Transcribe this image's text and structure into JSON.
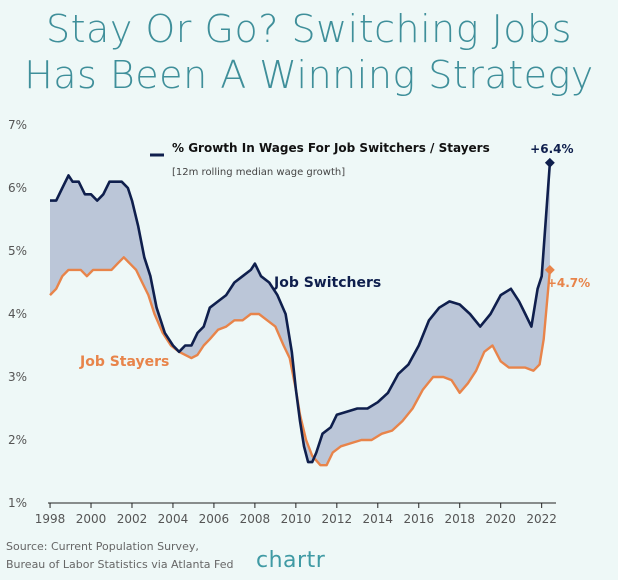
{
  "chart_data": {
    "type": "line",
    "title": [
      "Stay Or Go? Switching Jobs",
      "Has Been A Winning Strategy"
    ],
    "legend": {
      "title": "% Growth In Wages For Job Switchers / Stayers",
      "subtitle": "[12m rolling median wage growth]"
    },
    "xlim": [
      1997.9,
      2022.7
    ],
    "ylim": [
      1,
      7
    ],
    "x_ticks": [
      1998,
      2000,
      2002,
      2004,
      2006,
      2008,
      2010,
      2012,
      2014,
      2016,
      2018,
      2020,
      2022
    ],
    "y_ticks": [
      {
        "value": 1,
        "label": "1%"
      },
      {
        "value": 2,
        "label": "2%"
      },
      {
        "value": 3,
        "label": "3%"
      },
      {
        "value": 4,
        "label": "4%"
      },
      {
        "value": 5,
        "label": "5%"
      },
      {
        "value": 6,
        "label": "6%"
      },
      {
        "value": 7,
        "label": "7%"
      }
    ],
    "series": [
      {
        "name": "Job Switchers",
        "color": "#0f1f4d",
        "end_label": "+6.4%",
        "points": [
          [
            1998.0,
            5.8
          ],
          [
            1998.3,
            5.8
          ],
          [
            1998.6,
            6.0
          ],
          [
            1998.9,
            6.2
          ],
          [
            1999.1,
            6.1
          ],
          [
            1999.4,
            6.1
          ],
          [
            1999.7,
            5.9
          ],
          [
            2000.0,
            5.9
          ],
          [
            2000.3,
            5.8
          ],
          [
            2000.6,
            5.9
          ],
          [
            2000.9,
            6.1
          ],
          [
            2001.2,
            6.1
          ],
          [
            2001.5,
            6.1
          ],
          [
            2001.8,
            6.0
          ],
          [
            2002.0,
            5.8
          ],
          [
            2002.3,
            5.4
          ],
          [
            2002.6,
            4.9
          ],
          [
            2002.9,
            4.6
          ],
          [
            2003.2,
            4.1
          ],
          [
            2003.6,
            3.7
          ],
          [
            2004.0,
            3.5
          ],
          [
            2004.3,
            3.4
          ],
          [
            2004.6,
            3.5
          ],
          [
            2004.9,
            3.5
          ],
          [
            2005.2,
            3.7
          ],
          [
            2005.5,
            3.8
          ],
          [
            2005.8,
            4.1
          ],
          [
            2006.2,
            4.2
          ],
          [
            2006.6,
            4.3
          ],
          [
            2007.0,
            4.5
          ],
          [
            2007.4,
            4.6
          ],
          [
            2007.8,
            4.7
          ],
          [
            2008.0,
            4.8
          ],
          [
            2008.3,
            4.6
          ],
          [
            2008.7,
            4.5
          ],
          [
            2009.1,
            4.3
          ],
          [
            2009.5,
            4.0
          ],
          [
            2009.8,
            3.4
          ],
          [
            2010.0,
            2.8
          ],
          [
            2010.2,
            2.3
          ],
          [
            2010.4,
            1.9
          ],
          [
            2010.6,
            1.65
          ],
          [
            2010.8,
            1.65
          ],
          [
            2011.0,
            1.8
          ],
          [
            2011.3,
            2.1
          ],
          [
            2011.7,
            2.2
          ],
          [
            2012.0,
            2.4
          ],
          [
            2012.5,
            2.45
          ],
          [
            2013.0,
            2.5
          ],
          [
            2013.5,
            2.5
          ],
          [
            2014.0,
            2.6
          ],
          [
            2014.5,
            2.75
          ],
          [
            2015.0,
            3.05
          ],
          [
            2015.5,
            3.2
          ],
          [
            2016.0,
            3.5
          ],
          [
            2016.5,
            3.9
          ],
          [
            2017.0,
            4.1
          ],
          [
            2017.5,
            4.2
          ],
          [
            2018.0,
            4.15
          ],
          [
            2018.5,
            4.0
          ],
          [
            2019.0,
            3.8
          ],
          [
            2019.5,
            4.0
          ],
          [
            2020.0,
            4.3
          ],
          [
            2020.5,
            4.4
          ],
          [
            2020.9,
            4.2
          ],
          [
            2021.2,
            4.0
          ],
          [
            2021.5,
            3.8
          ],
          [
            2021.8,
            4.4
          ],
          [
            2022.0,
            4.6
          ],
          [
            2022.2,
            5.5
          ],
          [
            2022.4,
            6.4
          ]
        ]
      },
      {
        "name": "Job Stayers",
        "color": "#e8844a",
        "end_label": "+4.7%",
        "points": [
          [
            1998.0,
            4.3
          ],
          [
            1998.3,
            4.4
          ],
          [
            1998.6,
            4.6
          ],
          [
            1998.9,
            4.7
          ],
          [
            1999.2,
            4.7
          ],
          [
            1999.5,
            4.7
          ],
          [
            1999.8,
            4.6
          ],
          [
            2000.1,
            4.7
          ],
          [
            2000.4,
            4.7
          ],
          [
            2000.7,
            4.7
          ],
          [
            2001.0,
            4.7
          ],
          [
            2001.3,
            4.8
          ],
          [
            2001.6,
            4.9
          ],
          [
            2001.9,
            4.8
          ],
          [
            2002.2,
            4.7
          ],
          [
            2002.5,
            4.5
          ],
          [
            2002.8,
            4.3
          ],
          [
            2003.1,
            4.0
          ],
          [
            2003.5,
            3.7
          ],
          [
            2003.9,
            3.5
          ],
          [
            2004.3,
            3.4
          ],
          [
            2004.6,
            3.35
          ],
          [
            2004.9,
            3.3
          ],
          [
            2005.2,
            3.35
          ],
          [
            2005.5,
            3.5
          ],
          [
            2005.8,
            3.6
          ],
          [
            2006.2,
            3.75
          ],
          [
            2006.6,
            3.8
          ],
          [
            2007.0,
            3.9
          ],
          [
            2007.4,
            3.9
          ],
          [
            2007.8,
            4.0
          ],
          [
            2008.2,
            4.0
          ],
          [
            2008.6,
            3.9
          ],
          [
            2009.0,
            3.8
          ],
          [
            2009.4,
            3.5
          ],
          [
            2009.7,
            3.3
          ],
          [
            2010.0,
            2.8
          ],
          [
            2010.2,
            2.4
          ],
          [
            2010.5,
            2.0
          ],
          [
            2010.8,
            1.75
          ],
          [
            2011.2,
            1.6
          ],
          [
            2011.5,
            1.6
          ],
          [
            2011.8,
            1.8
          ],
          [
            2012.2,
            1.9
          ],
          [
            2012.7,
            1.95
          ],
          [
            2013.2,
            2.0
          ],
          [
            2013.7,
            2.0
          ],
          [
            2014.2,
            2.1
          ],
          [
            2014.7,
            2.15
          ],
          [
            2015.2,
            2.3
          ],
          [
            2015.7,
            2.5
          ],
          [
            2016.2,
            2.8
          ],
          [
            2016.7,
            3.0
          ],
          [
            2017.2,
            3.0
          ],
          [
            2017.6,
            2.95
          ],
          [
            2018.0,
            2.75
          ],
          [
            2018.4,
            2.9
          ],
          [
            2018.8,
            3.1
          ],
          [
            2019.2,
            3.4
          ],
          [
            2019.6,
            3.5
          ],
          [
            2020.0,
            3.25
          ],
          [
            2020.4,
            3.15
          ],
          [
            2020.8,
            3.15
          ],
          [
            2021.2,
            3.15
          ],
          [
            2021.6,
            3.1
          ],
          [
            2021.9,
            3.2
          ],
          [
            2022.1,
            3.6
          ],
          [
            2022.4,
            4.7
          ]
        ]
      }
    ],
    "source": [
      "Source: Current Population Survey,",
      "Bureau of Labor Statistics via Atlanta Fed"
    ],
    "brand": "chartr",
    "fill_color": "#b5c0d4"
  }
}
